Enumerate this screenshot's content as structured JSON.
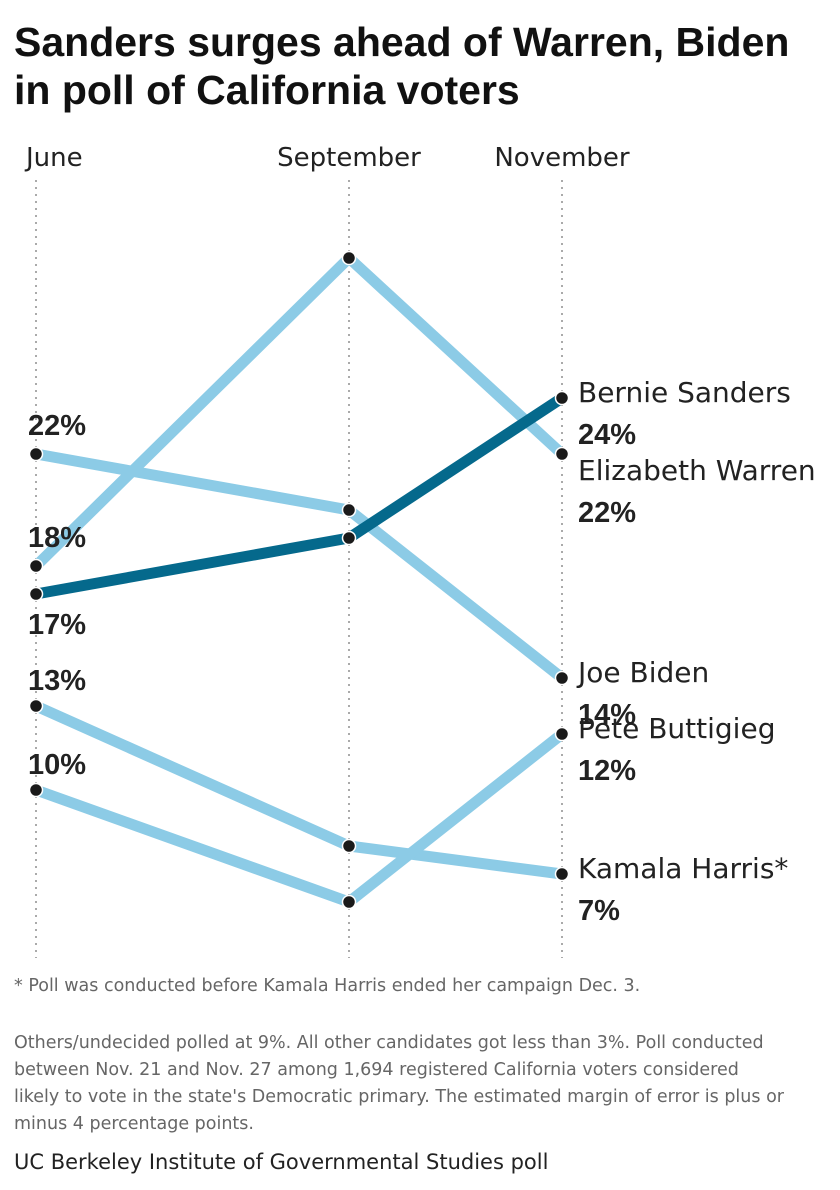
{
  "title": "Sanders surges ahead of Warren, Biden in poll of California voters",
  "footnote": "* Poll was conducted before Kamala Harris ended her campaign Dec. 3.",
  "note": "Others/undecided polled at 9%. All other candidates got less than 3%. Poll conducted between Nov. 21 and Nov. 27 among 1,694 registered California voters considered likely to vote in the state's Democratic primary. The estimated margin of error is plus or minus 4 percentage points.",
  "source": "UC Berkeley Institute of Governmental Studies poll",
  "colors": {
    "highlight": "#05698c",
    "other": "#8ccbe6",
    "dot": "#1a1a1a",
    "gridline": "#aaaaaa"
  },
  "chart_data": {
    "type": "line",
    "x": [
      "June",
      "September",
      "November"
    ],
    "series": [
      {
        "name": "Elizabeth Warren",
        "values": [
          18,
          29,
          22
        ],
        "labels": [
          "18%",
          "",
          "22%"
        ],
        "highlight": false
      },
      {
        "name": "Joe Biden",
        "values": [
          22,
          20,
          14
        ],
        "labels": [
          "22%",
          "",
          "14%"
        ],
        "highlight": false
      },
      {
        "name": "Kamala Harris*",
        "values": [
          13,
          8,
          7
        ],
        "labels": [
          "13%",
          "",
          "7%"
        ],
        "highlight": false
      },
      {
        "name": "Pete Buttigieg",
        "values": [
          10,
          6,
          12
        ],
        "labels": [
          "10%",
          "",
          "12%"
        ],
        "highlight": false
      },
      {
        "name": "Bernie Sanders",
        "values": [
          17,
          19,
          24
        ],
        "labels": [
          "17%",
          "",
          "24%"
        ],
        "highlight": true
      }
    ]
  }
}
